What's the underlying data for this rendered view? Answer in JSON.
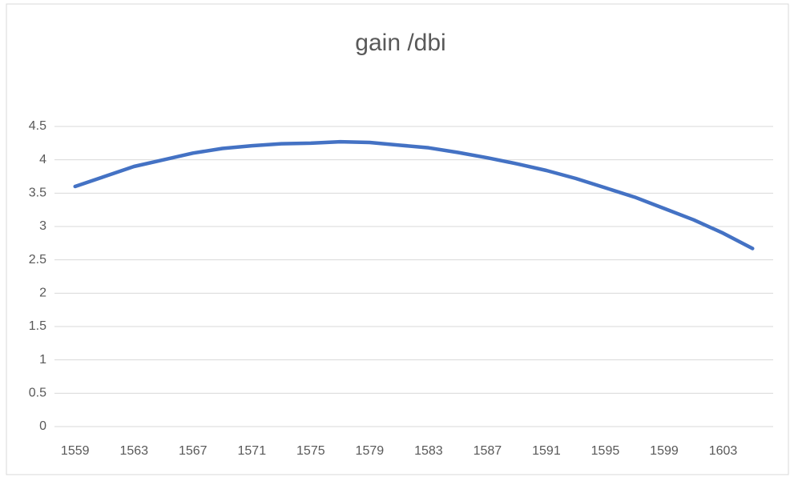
{
  "chart_data": {
    "type": "line",
    "title": "gain /dbi",
    "x": [
      1559,
      1561,
      1563,
      1565,
      1567,
      1569,
      1571,
      1573,
      1575,
      1577,
      1579,
      1581,
      1583,
      1585,
      1587,
      1589,
      1591,
      1593,
      1595,
      1597,
      1599,
      1601,
      1603,
      1605
    ],
    "series": [
      {
        "name": "gain /dbi",
        "color": "#4472c4",
        "values": [
          3.6,
          3.75,
          3.9,
          4.0,
          4.1,
          4.17,
          4.21,
          4.24,
          4.25,
          4.27,
          4.26,
          4.22,
          4.18,
          4.11,
          4.03,
          3.94,
          3.84,
          3.72,
          3.58,
          3.44,
          3.27,
          3.1,
          2.9,
          2.67
        ]
      }
    ],
    "xlim": [
      1557.6,
      1606.4
    ],
    "xticks": [
      1559,
      1563,
      1567,
      1571,
      1575,
      1579,
      1583,
      1587,
      1591,
      1595,
      1599,
      1603
    ],
    "ylim": [
      0,
      4.5
    ],
    "yticks": [
      0,
      0.5,
      1,
      1.5,
      2,
      2.5,
      3,
      3.5,
      4,
      4.5
    ],
    "grid": true
  }
}
